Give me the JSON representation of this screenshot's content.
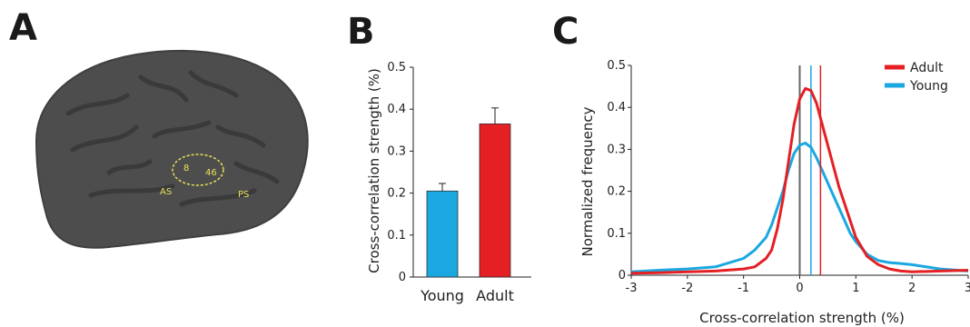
{
  "panels": {
    "a": {
      "letter": "A",
      "labels": {
        "area8": "8",
        "area46": "46",
        "as": "AS",
        "ps": "PS"
      }
    },
    "b": {
      "letter": "B"
    },
    "c": {
      "letter": "C"
    }
  },
  "colors": {
    "young": "#1ba8e0",
    "adult": "#e42024",
    "brain": "#4d4d4d",
    "brain_sulci": "#3a3a3a",
    "roi": "#e8e05a",
    "zero_line": "#666666"
  },
  "chart_data": [
    {
      "type": "bar",
      "categories": [
        "Young",
        "Adult"
      ],
      "values": [
        0.205,
        0.365
      ],
      "errors": [
        0.018,
        0.038
      ],
      "ylabel": "Cross-correlation strength (%)",
      "ylim": [
        0,
        0.5
      ],
      "yticks": [
        "0",
        "0.1",
        "0.2",
        "0.3",
        "0.4",
        "0.5"
      ]
    },
    {
      "type": "line",
      "xlabel": "Cross-correlation strength (%)",
      "ylabel": "Normalized frequency",
      "xlim": [
        -3,
        3
      ],
      "ylim": [
        0,
        0.5
      ],
      "xticks": [
        "-3",
        "-2",
        "-1",
        "0",
        "1",
        "2",
        "3"
      ],
      "yticks": [
        "0",
        "0.1",
        "0.2",
        "0.3",
        "0.4",
        "0.5"
      ],
      "legend_position": "top-right",
      "series": [
        {
          "name": "Adult",
          "mean_line": 0.37,
          "x": [
            -3,
            -2.5,
            -2,
            -1.5,
            -1,
            -0.8,
            -0.6,
            -0.5,
            -0.4,
            -0.3,
            -0.2,
            -0.1,
            0,
            0.1,
            0.2,
            0.3,
            0.4,
            0.5,
            0.6,
            0.7,
            0.8,
            0.9,
            1.0,
            1.2,
            1.4,
            1.6,
            1.8,
            2,
            2.5,
            3
          ],
          "y": [
            0.005,
            0.006,
            0.008,
            0.01,
            0.015,
            0.02,
            0.04,
            0.06,
            0.11,
            0.18,
            0.27,
            0.36,
            0.42,
            0.445,
            0.44,
            0.41,
            0.36,
            0.31,
            0.26,
            0.21,
            0.17,
            0.13,
            0.09,
            0.045,
            0.025,
            0.015,
            0.01,
            0.008,
            0.01,
            0.012
          ]
        },
        {
          "name": "Young",
          "mean_line": 0.2,
          "x": [
            -3,
            -2.5,
            -2,
            -1.5,
            -1,
            -0.8,
            -0.6,
            -0.5,
            -0.4,
            -0.3,
            -0.2,
            -0.1,
            0,
            0.1,
            0.2,
            0.3,
            0.4,
            0.5,
            0.6,
            0.7,
            0.8,
            0.9,
            1.0,
            1.2,
            1.4,
            1.6,
            1.8,
            2,
            2.5,
            3
          ],
          "y": [
            0.008,
            0.012,
            0.015,
            0.02,
            0.04,
            0.06,
            0.09,
            0.12,
            0.16,
            0.2,
            0.25,
            0.29,
            0.31,
            0.315,
            0.305,
            0.28,
            0.25,
            0.22,
            0.19,
            0.16,
            0.13,
            0.1,
            0.08,
            0.05,
            0.035,
            0.03,
            0.028,
            0.025,
            0.015,
            0.01
          ]
        }
      ],
      "zero_line": 0
    }
  ]
}
